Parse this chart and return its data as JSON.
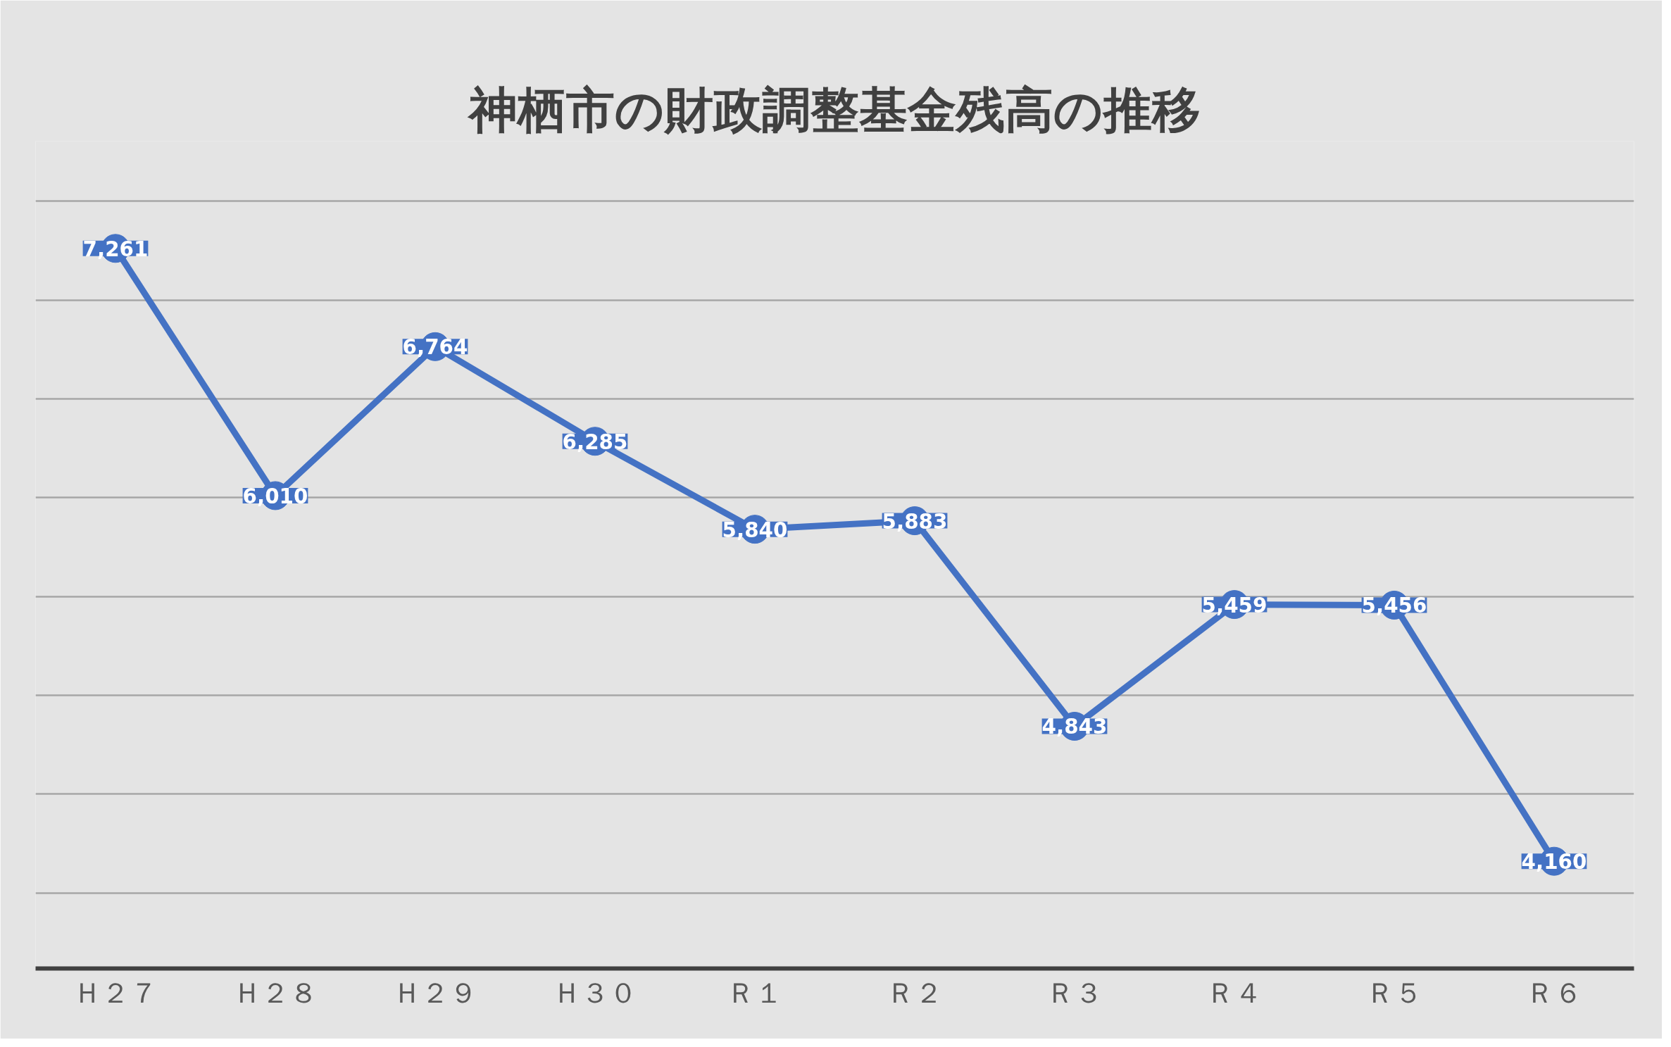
{
  "chart_data": {
    "type": "line",
    "title": "神栖市の財政調整基金残高の推移",
    "categories": [
      "Ｈ２７",
      "Ｈ２８",
      "Ｈ２９",
      "Ｈ３０",
      "Ｒ１",
      "Ｒ２",
      "Ｒ３",
      "Ｒ４",
      "Ｒ５",
      "Ｒ６"
    ],
    "series": [
      {
        "color": "#4472c4",
        "values": [
          7261,
          6010,
          6764,
          6285,
          5840,
          5883,
          4843,
          5459,
          5456,
          4160
        ],
        "value_labels": [
          "7,261",
          "6,010",
          "6,764",
          "6,285",
          "5,840",
          "5,883",
          "4,843",
          "5,459",
          "5,456",
          "4,160"
        ]
      }
    ],
    "marker": "circle",
    "line_style": "solid",
    "grid": "y",
    "tick_labels": "x"
  }
}
